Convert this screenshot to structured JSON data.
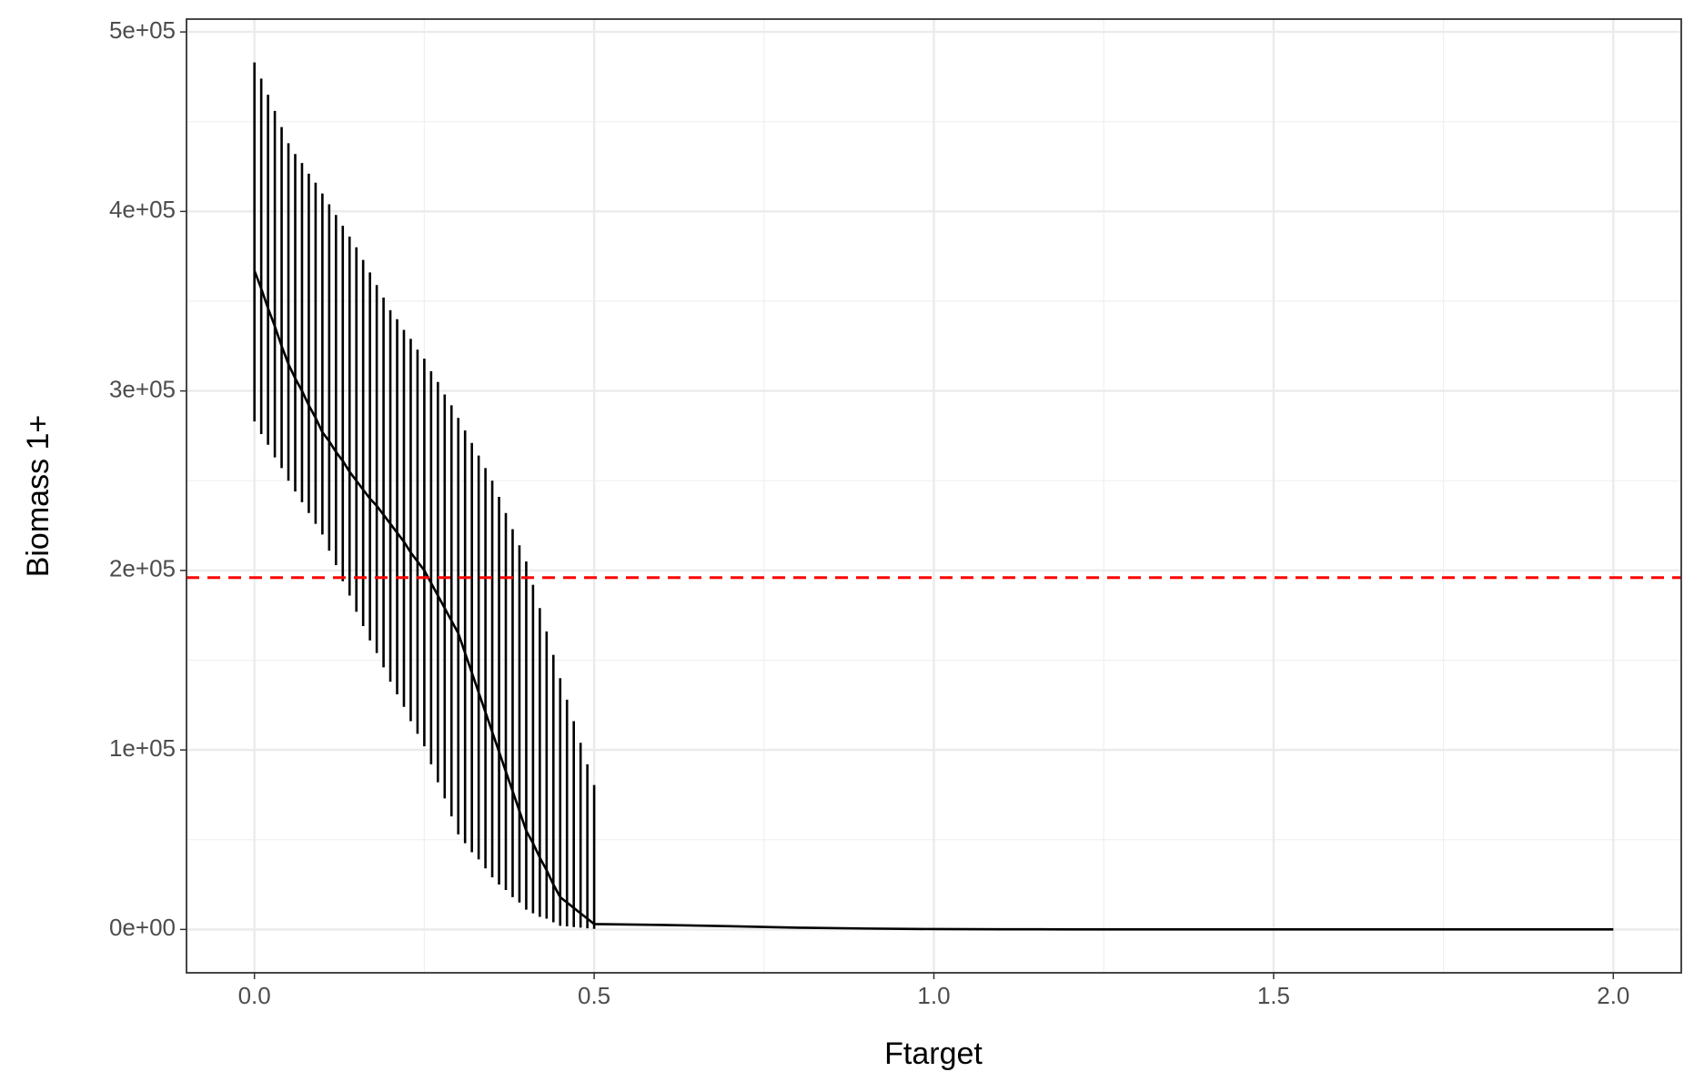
{
  "chart_data": {
    "type": "line",
    "x_label": "Ftarget",
    "y_label": "Biomass 1+",
    "x": [
      0,
      0.01,
      0.02,
      0.03,
      0.04,
      0.05,
      0.06,
      0.07,
      0.08,
      0.09,
      0.1,
      0.11,
      0.12,
      0.13,
      0.14,
      0.15,
      0.16,
      0.17,
      0.18,
      0.19,
      0.2,
      0.21,
      0.22,
      0.23,
      0.24,
      0.25,
      0.26,
      0.27,
      0.28,
      0.29,
      0.3,
      0.31,
      0.32,
      0.33,
      0.34,
      0.35,
      0.36,
      0.37,
      0.38,
      0.39,
      0.4,
      0.41,
      0.42,
      0.43,
      0.44,
      0.45,
      0.46,
      0.47,
      0.48,
      0.49,
      0.5,
      0.6,
      0.7,
      0.8,
      0.9,
      1.0,
      1.1,
      1.2,
      1.3,
      1.4,
      1.5,
      1.6,
      1.7,
      1.8,
      1.9,
      2.0
    ],
    "values": [
      367000,
      357000,
      346000,
      336000,
      325000,
      315000,
      307000,
      300000,
      292000,
      285000,
      277000,
      272000,
      266000,
      261000,
      255000,
      250000,
      245000,
      240000,
      236000,
      231000,
      226000,
      221000,
      216000,
      210000,
      205000,
      200000,
      193000,
      186000,
      179000,
      172000,
      165000,
      154000,
      143000,
      132000,
      121000,
      110000,
      99000,
      88000,
      77000,
      66000,
      55000,
      48000,
      40000,
      33000,
      25000,
      18000,
      15000,
      12000,
      9000,
      6000,
      3000,
      2500,
      1800,
      1000,
      500,
      200,
      100,
      50,
      20,
      10,
      5,
      2,
      1,
      0,
      0,
      0
    ],
    "lower": [
      283000,
      276000,
      270000,
      263000,
      257000,
      250000,
      244000,
      238000,
      232000,
      226000,
      220000,
      211000,
      203000,
      194000,
      186000,
      177000,
      169000,
      161000,
      154000,
      146000,
      138000,
      131000,
      124000,
      116000,
      109000,
      102000,
      92000,
      82000,
      73000,
      63000,
      53000,
      48000,
      43000,
      39000,
      34000,
      29000,
      25000,
      22000,
      18000,
      15000,
      11000,
      9000,
      7000,
      6000,
      4000,
      2000,
      1700,
      1300,
      1000,
      600,
      300,
      null,
      null,
      null,
      null,
      null,
      null,
      null,
      null,
      null,
      null,
      null,
      null,
      null,
      null,
      null
    ],
    "upper": [
      483000,
      474000,
      465000,
      456000,
      447000,
      438000,
      432000,
      427000,
      421000,
      416000,
      410000,
      404000,
      398000,
      392000,
      386000,
      380000,
      373000,
      366000,
      359000,
      352000,
      345000,
      340000,
      334000,
      329000,
      323000,
      318000,
      311000,
      305000,
      298000,
      292000,
      285000,
      278000,
      271000,
      264000,
      257000,
      250000,
      241000,
      232000,
      223000,
      214000,
      205000,
      192000,
      179000,
      166000,
      153000,
      140000,
      128000,
      116000,
      104000,
      92000,
      80500,
      null,
      null,
      null,
      null,
      null,
      null,
      null,
      null,
      null,
      null,
      null,
      null,
      null,
      null,
      null
    ],
    "color": "#000000",
    "hline": {
      "value": 196000,
      "color": "#ff0000"
    },
    "xlim": [
      -0.1,
      2.1
    ],
    "ylim": [
      -24150,
      507150
    ],
    "xticks": [
      {
        "value": 0,
        "label": "0.0"
      },
      0.5,
      {
        "value": 1,
        "label": "1.0"
      },
      1.5,
      {
        "value": 2,
        "label": "2.0"
      }
    ],
    "yticks": [
      {
        "value": 0,
        "label": "0e+00"
      },
      {
        "value": 100000,
        "label": "1e+05"
      },
      {
        "value": 200000,
        "label": "2e+05"
      },
      {
        "value": 300000,
        "label": "3e+05"
      },
      {
        "value": 400000,
        "label": "4e+05"
      },
      {
        "value": 500000,
        "label": "5e+05"
      }
    ],
    "grid": true,
    "minor_grid": true
  }
}
